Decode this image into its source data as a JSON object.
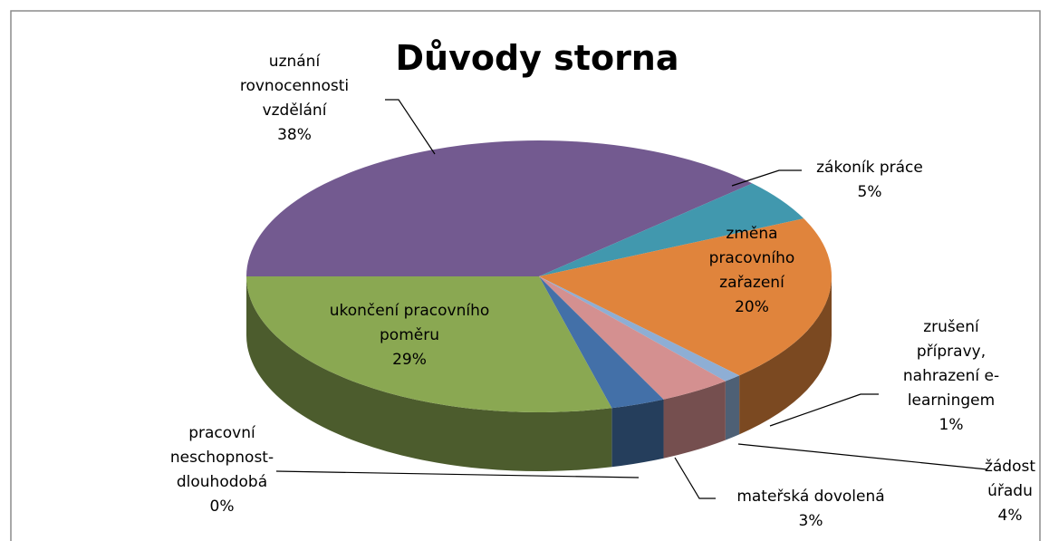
{
  "chart_data": {
    "type": "pie",
    "title": "Důvody storna",
    "categories": [
      "uznání rovnocennosti vzdělání",
      "zákoník práce",
      "změna pracovního zařazení",
      "zrušení přípravy, nahrazení e-learningem",
      "žádost úřadu",
      "mateřská dovolená",
      "pracovní neschopnost-dlouhodobá",
      "ukončení pracovního poměru"
    ],
    "values": [
      38,
      5,
      20,
      1,
      4,
      3,
      0,
      29
    ],
    "value_labels": [
      "38%",
      "5%",
      "20%",
      "1%",
      "4%",
      "3%",
      "0%",
      "29%"
    ],
    "colors": [
      "#735a90",
      "#4198ae",
      "#e0843c",
      "#8eaed4",
      "#d49090",
      "#4370a8",
      "#b8453f",
      "#8aa852"
    ]
  }
}
